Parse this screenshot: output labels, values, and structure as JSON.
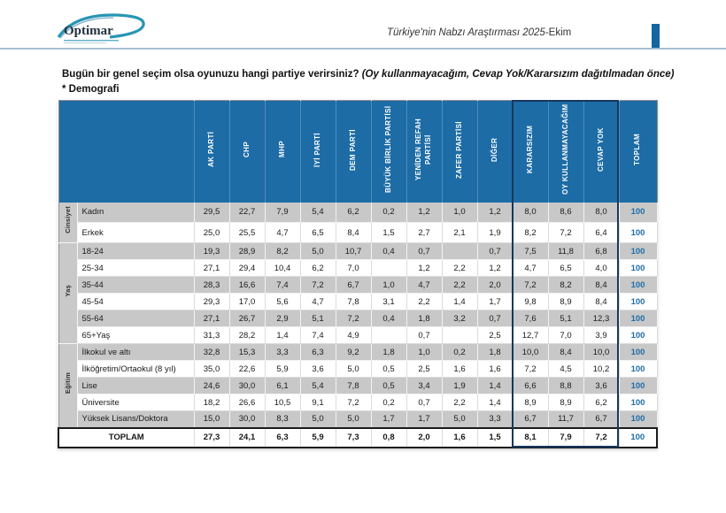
{
  "header": {
    "logo_text": "Optimar",
    "title_main": "Türkiye'nin Nabzı Araştırması 2025",
    "title_suffix": "-Ekim"
  },
  "question": {
    "bold": "Bugün bir genel seçim olsa oyunuzu hangi partiye verirsiniz?",
    "italic": "(Oy kullanmayacağım, Cevap Yok/Kararsızım dağıtılmadan önce)",
    "note": "* Demografi"
  },
  "colors": {
    "accent_blue": "#1d6ca6",
    "row_gray": "#c8c8c8",
    "highlight_box_border": "#17375e",
    "total_value_blue": "#1f6da8",
    "header_rule": "#a3bfd3",
    "logo_swoosh": "#2795b5"
  },
  "chart_data": {
    "type": "table",
    "columns": [
      "AK PARTİ",
      "CHP",
      "MHP",
      "İYİ PARTİ",
      "DEM PARTİ",
      "BÜYÜK BİRLİK PARTİSİ",
      "YENİDEN REFAH PARTİSİ",
      "ZAFER PARTİSİ",
      "DİĞER",
      "KARARSIZIM",
      "OY KULLANMAYACAĞIM",
      "CEVAP YOK",
      "TOPLAM"
    ],
    "highlighted_columns": [
      "KARARSIZIM",
      "OY KULLANMAYACAĞIM",
      "CEVAP YOK"
    ],
    "groups": [
      {
        "name": "Cinsiyet",
        "rows": [
          {
            "label": "Kadın",
            "values": [
              "29,5",
              "22,7",
              "7,9",
              "5,4",
              "6,2",
              "0,2",
              "1,2",
              "1,0",
              "1,2",
              "8,0",
              "8,6",
              "8,0",
              "100"
            ]
          },
          {
            "label": "Erkek",
            "values": [
              "25,0",
              "25,5",
              "4,7",
              "6,5",
              "8,4",
              "1,5",
              "2,7",
              "2,1",
              "1,9",
              "8,2",
              "7,2",
              "6,4",
              "100"
            ]
          }
        ]
      },
      {
        "name": "Yaş",
        "rows": [
          {
            "label": "18-24",
            "values": [
              "19,3",
              "28,9",
              "8,2",
              "5,0",
              "10,7",
              "0,4",
              "0,7",
              "",
              "0,7",
              "7,5",
              "11,8",
              "6,8",
              "100"
            ]
          },
          {
            "label": "25-34",
            "values": [
              "27,1",
              "29,4",
              "10,4",
              "6,2",
              "7,0",
              "",
              "1,2",
              "2,2",
              "1,2",
              "4,7",
              "6,5",
              "4,0",
              "100"
            ]
          },
          {
            "label": "35-44",
            "values": [
              "28,3",
              "16,6",
              "7,4",
              "7,2",
              "6,7",
              "1,0",
              "4,7",
              "2,2",
              "2,0",
              "7,2",
              "8,2",
              "8,4",
              "100"
            ]
          },
          {
            "label": "45-54",
            "values": [
              "29,3",
              "17,0",
              "5,6",
              "4,7",
              "7,8",
              "3,1",
              "2,2",
              "1,4",
              "1,7",
              "9,8",
              "8,9",
              "8,4",
              "100"
            ]
          },
          {
            "label": "55-64",
            "values": [
              "27,1",
              "26,7",
              "2,9",
              "5,1",
              "7,2",
              "0,4",
              "1,8",
              "3,2",
              "0,7",
              "7,6",
              "5,1",
              "12,3",
              "100"
            ]
          },
          {
            "label": "65+Yaş",
            "values": [
              "31,3",
              "28,2",
              "1,4",
              "7,4",
              "4,9",
              "",
              "0,7",
              "",
              "2,5",
              "12,7",
              "7,0",
              "3,9",
              "100"
            ]
          }
        ]
      },
      {
        "name": "Eğitim",
        "rows": [
          {
            "label": "İlkokul ve altı",
            "values": [
              "32,8",
              "15,3",
              "3,3",
              "6,3",
              "9,2",
              "1,8",
              "1,0",
              "0,2",
              "1,8",
              "10,0",
              "8,4",
              "10,0",
              "100"
            ]
          },
          {
            "label": "İlköğretim/Ortaokul (8 yıl)",
            "values": [
              "35,0",
              "22,6",
              "5,9",
              "3,6",
              "5,0",
              "0,5",
              "2,5",
              "1,6",
              "1,6",
              "7,2",
              "4,5",
              "10,2",
              "100"
            ]
          },
          {
            "label": "Lise",
            "values": [
              "24,6",
              "30,0",
              "6,1",
              "5,4",
              "7,8",
              "0,5",
              "3,4",
              "1,9",
              "1,4",
              "6,6",
              "8,8",
              "3,6",
              "100"
            ]
          },
          {
            "label": "Üniversite",
            "values": [
              "18,2",
              "26,6",
              "10,5",
              "9,1",
              "7,2",
              "0,2",
              "0,7",
              "2,2",
              "1,4",
              "8,9",
              "8,9",
              "6,2",
              "100"
            ]
          },
          {
            "label": "Yüksek Lisans/Doktora",
            "values": [
              "15,0",
              "30,0",
              "8,3",
              "5,0",
              "5,0",
              "1,7",
              "1,7",
              "5,0",
              "3,3",
              "6,7",
              "11,7",
              "6,7",
              "100"
            ]
          }
        ]
      }
    ],
    "total_row": {
      "label": "TOPLAM",
      "values": [
        "27,3",
        "24,1",
        "6,3",
        "5,9",
        "7,3",
        "0,8",
        "2,0",
        "1,6",
        "1,5",
        "8,1",
        "7,9",
        "7,2",
        "100"
      ]
    }
  }
}
